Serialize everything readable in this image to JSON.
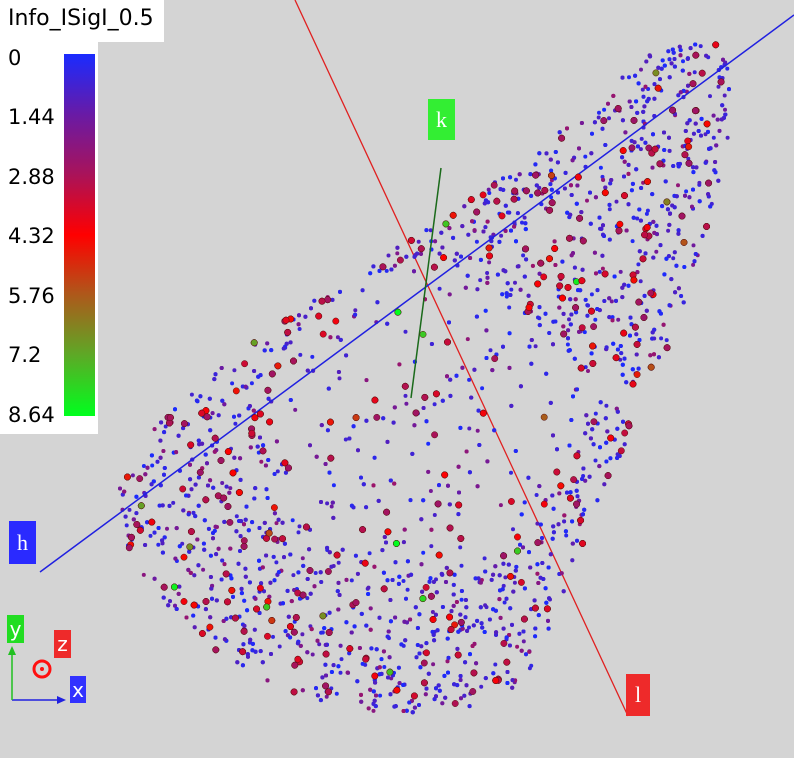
{
  "colorbar": {
    "title": "Info_ISigI_0.5",
    "ticks": [
      "0",
      "1.44",
      "2.88",
      "4.32",
      "5.76",
      "7.2",
      "8.64"
    ],
    "min": 0,
    "max": 8.64,
    "gradient": [
      "#1a2bff",
      "#6a1aa4",
      "#a8135b",
      "#ff0000",
      "#b0561a",
      "#5ea826",
      "#00ff1e"
    ]
  },
  "axes": {
    "h": {
      "label": "h",
      "color": "#0000ff"
    },
    "k": {
      "label": "k",
      "color": "#008000"
    },
    "l": {
      "label": "l",
      "color": "#ff0000"
    }
  },
  "orientation": {
    "x": {
      "label": "x",
      "color": "#3232ff"
    },
    "y": {
      "label": "y",
      "color": "#20e020"
    },
    "z": {
      "label": "z",
      "color": "#ff2020"
    }
  },
  "chart_data": {
    "type": "scatter",
    "title": "Info_ISigI_0.5",
    "colormap": "blue-red-green",
    "value_range": [
      0,
      8.64
    ],
    "grid": false,
    "legend_placement": "top-left"
  }
}
